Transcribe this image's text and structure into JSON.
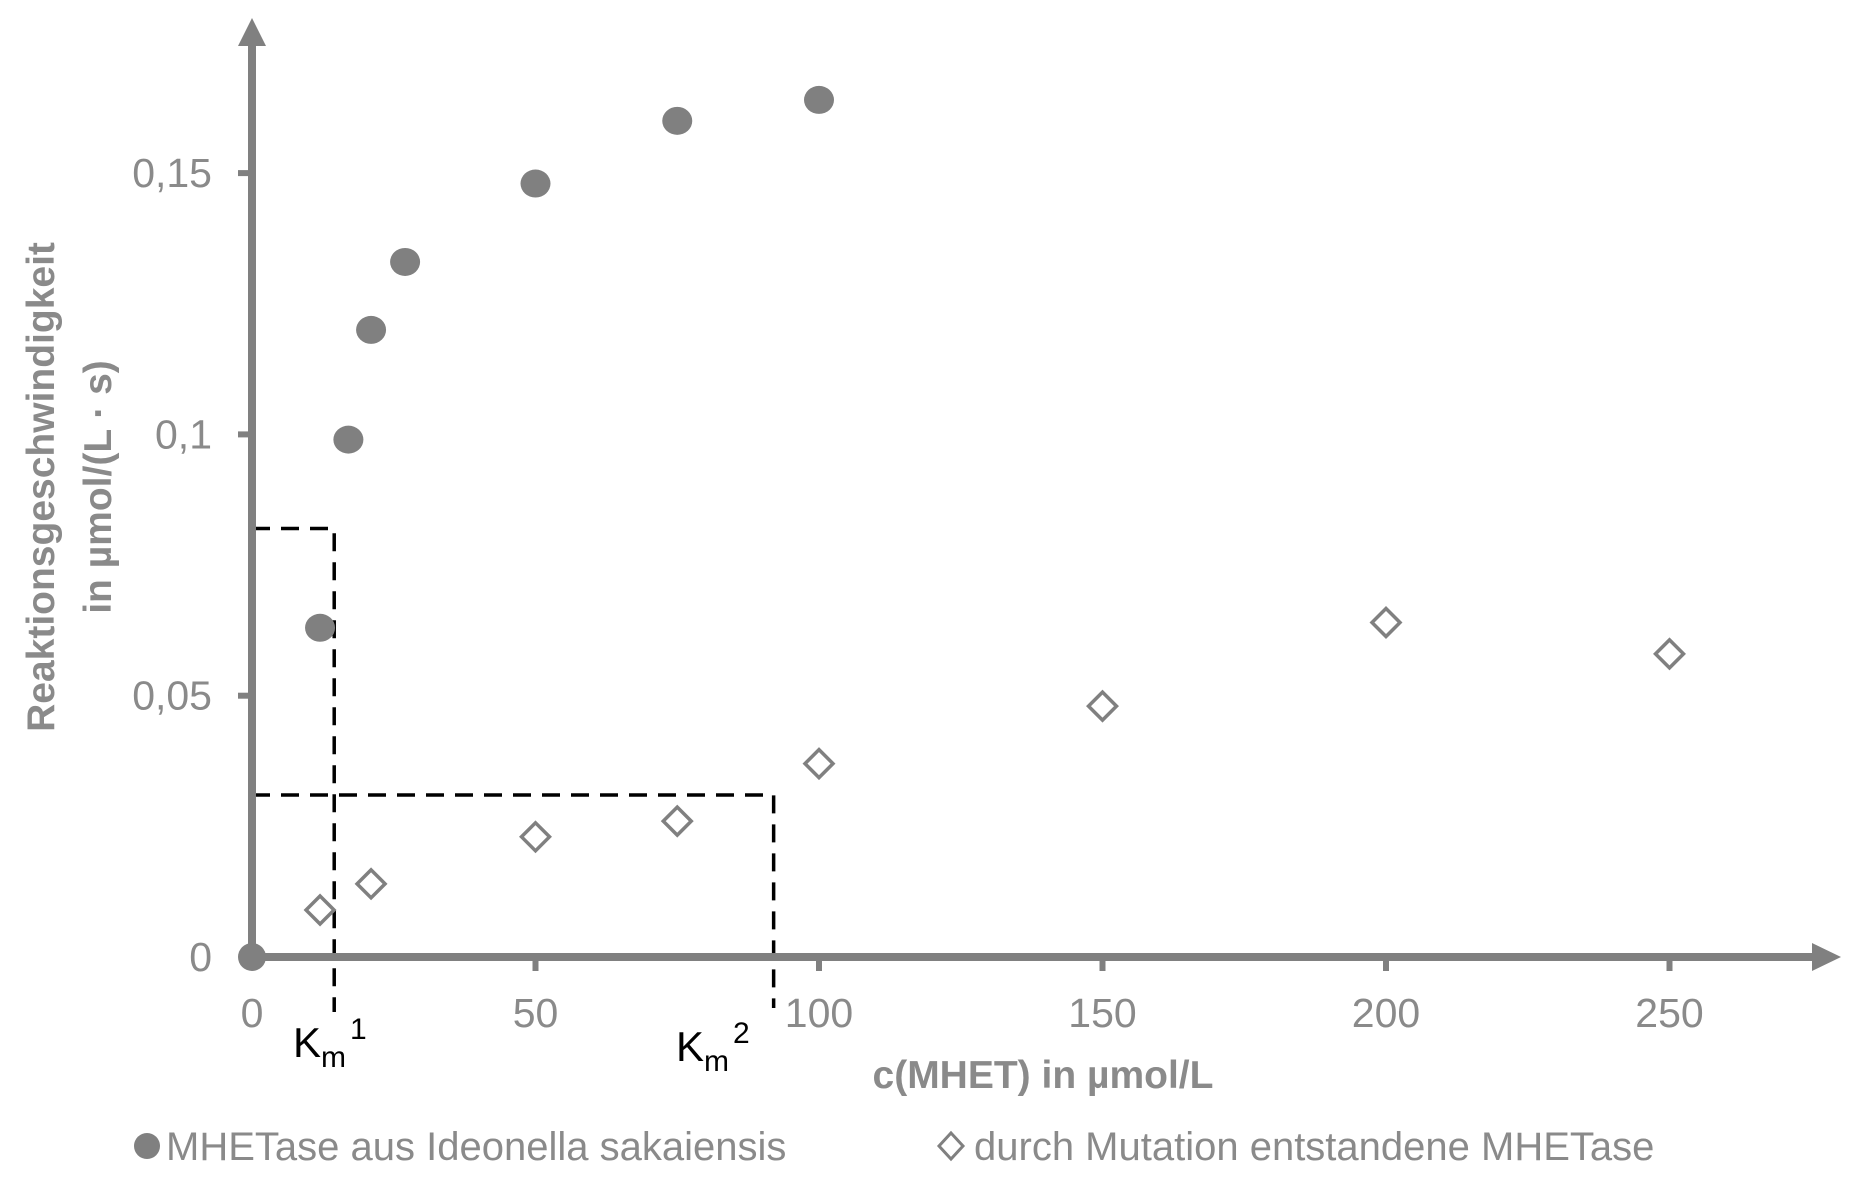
{
  "chart_data": {
    "type": "scatter",
    "title": "",
    "xlabel": "c(MHET) in µmol/L",
    "ylabel_line1": "Reaktionsgeschwindigkeit",
    "ylabel_line2": "in µmol/(L · s)",
    "xlim": [
      0,
      280
    ],
    "ylim": [
      0,
      0.18
    ],
    "x_ticks": [
      0,
      50,
      100,
      150,
      200,
      250
    ],
    "x_tick_labels": [
      "0",
      "50",
      "100",
      "150",
      "200",
      "250"
    ],
    "y_ticks": [
      0,
      0.05,
      0.1,
      0.15
    ],
    "y_tick_labels": [
      "0",
      "0,05",
      "0,1",
      "0,15"
    ],
    "grid": false,
    "legend_position": "bottom",
    "series": [
      {
        "name": "MHETase aus Ideonella sakaiensis",
        "marker": "filled-circle",
        "color": "#808080",
        "x": [
          12,
          17,
          21,
          27,
          50,
          75,
          100
        ],
        "y": [
          0.063,
          0.099,
          0.12,
          0.133,
          0.148,
          0.16,
          0.164
        ]
      },
      {
        "name": "durch Mutation entstandene MHETase",
        "marker": "open-diamond",
        "color": "#808080",
        "x": [
          12,
          21,
          50,
          75,
          100,
          150,
          200,
          250
        ],
        "y": [
          0.009,
          0.014,
          0.023,
          0.026,
          0.037,
          0.048,
          0.064,
          0.058
        ]
      }
    ],
    "annotations": [
      {
        "label": "Km",
        "superscript": "1",
        "subscript": "m",
        "base": "K",
        "x": 14.5,
        "y": 0.082,
        "style": "dashed-guide"
      },
      {
        "label": "Km",
        "superscript": "2",
        "subscript": "m",
        "base": "K",
        "x": 92,
        "y": 0.031,
        "style": "dashed-guide"
      }
    ]
  },
  "legend": {
    "items": [
      {
        "symbol": "●",
        "label": "MHETase aus Ideonella sakaiensis"
      },
      {
        "symbol": "◇",
        "label": "durch Mutation entstandene MHETase"
      }
    ]
  },
  "colors": {
    "axis": "#808080",
    "text": "#8a8a8a",
    "guides": "#000000"
  }
}
